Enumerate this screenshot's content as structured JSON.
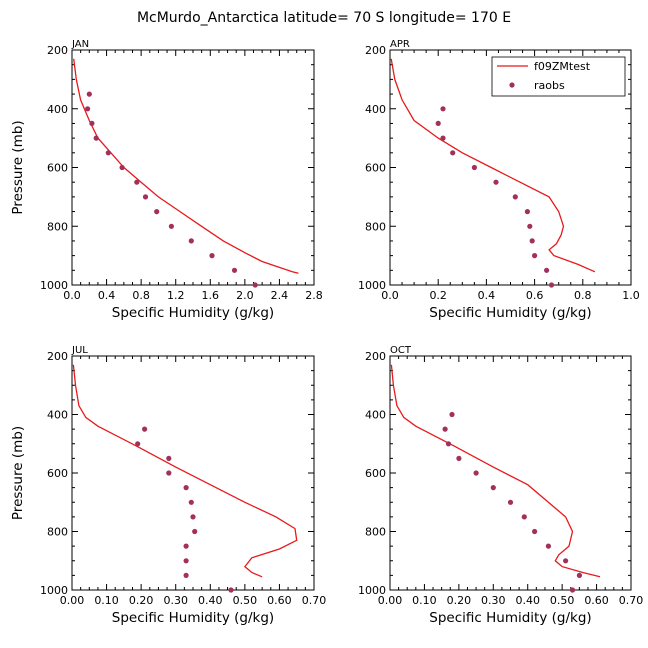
{
  "figure": {
    "title": "McMurdo_Antarctica  latitude= 70 S longitude= 170 E"
  },
  "legend": {
    "entries": [
      "f09ZMtest",
      "raobs"
    ],
    "model_color": "#e8191c",
    "obs_color": "#a3305c"
  },
  "chart_data": [
    {
      "type": "line",
      "panel": "JAN",
      "xlabel": "Specific Humidity (g/kg)",
      "ylabel": "Pressure (mb)",
      "xlim": [
        0,
        2.8
      ],
      "ylim": [
        1000,
        200
      ],
      "xticks": [
        0.0,
        0.4,
        0.8,
        1.2,
        1.6,
        2.0,
        2.4,
        2.8
      ],
      "xtick_labels": [
        "0.0",
        "0.4",
        "0.8",
        "1.2",
        "1.6",
        "2.0",
        "2.4",
        "2.8"
      ],
      "yticks": [
        200,
        400,
        600,
        800,
        1000
      ],
      "ytick_labels": [
        "200",
        "400",
        "600",
        "800",
        "1000"
      ],
      "series": [
        {
          "name": "f09ZMtest",
          "kind": "line",
          "x": [
            0.02,
            0.05,
            0.1,
            0.2,
            0.3,
            0.45,
            0.6,
            0.8,
            1.0,
            1.25,
            1.5,
            1.75,
            2.0,
            2.2,
            2.4,
            2.55,
            2.62
          ],
          "y": [
            230,
            300,
            370,
            440,
            500,
            550,
            600,
            650,
            700,
            750,
            800,
            850,
            890,
            920,
            940,
            955,
            960
          ]
        },
        {
          "name": "raobs",
          "kind": "scatter",
          "x": [
            0.2,
            0.18,
            0.23,
            0.28,
            0.42,
            0.58,
            0.75,
            0.85,
            0.98,
            1.15,
            1.38,
            1.62,
            1.88,
            2.12
          ],
          "y": [
            350,
            400,
            450,
            500,
            550,
            600,
            650,
            700,
            750,
            800,
            850,
            900,
            950,
            1000
          ]
        }
      ]
    },
    {
      "type": "line",
      "panel": "APR",
      "xlabel": "Specific Humidity (g/kg)",
      "ylabel": "",
      "xlim": [
        0,
        1.0
      ],
      "ylim": [
        1000,
        200
      ],
      "xticks": [
        0.0,
        0.2,
        0.4,
        0.6,
        0.8,
        1.0
      ],
      "xtick_labels": [
        "0.0",
        "0.2",
        "0.4",
        "0.6",
        "0.8",
        "1.0"
      ],
      "yticks": [
        200,
        400,
        600,
        800,
        1000
      ],
      "ytick_labels": [
        "200",
        "400",
        "600",
        "800",
        "1000"
      ],
      "series": [
        {
          "name": "f09ZMtest",
          "kind": "line",
          "x": [
            0.005,
            0.02,
            0.05,
            0.1,
            0.2,
            0.3,
            0.42,
            0.54,
            0.66,
            0.7,
            0.72,
            0.71,
            0.69,
            0.66,
            0.68,
            0.78,
            0.85
          ],
          "y": [
            230,
            300,
            370,
            440,
            500,
            550,
            600,
            650,
            700,
            750,
            800,
            830,
            860,
            880,
            900,
            930,
            955
          ]
        },
        {
          "name": "raobs",
          "kind": "scatter",
          "x": [
            0.22,
            0.2,
            0.22,
            0.26,
            0.35,
            0.44,
            0.52,
            0.57,
            0.58,
            0.59,
            0.6,
            0.65,
            0.67
          ],
          "y": [
            400,
            450,
            500,
            550,
            600,
            650,
            700,
            750,
            800,
            850,
            900,
            950,
            1000
          ]
        }
      ]
    },
    {
      "type": "line",
      "panel": "JUL",
      "xlabel": "Specific Humidity (g/kg)",
      "ylabel": "Pressure (mb)",
      "xlim": [
        0,
        0.7
      ],
      "ylim": [
        1000,
        200
      ],
      "xticks": [
        0.0,
        0.1,
        0.2,
        0.3,
        0.4,
        0.5,
        0.6,
        0.7
      ],
      "xtick_labels": [
        "0.00",
        "0.10",
        "0.20",
        "0.30",
        "0.40",
        "0.50",
        "0.60",
        "0.70"
      ],
      "yticks": [
        200,
        400,
        600,
        800,
        1000
      ],
      "ytick_labels": [
        "200",
        "400",
        "600",
        "800",
        "1000"
      ],
      "series": [
        {
          "name": "f09ZMtest",
          "kind": "line",
          "x": [
            0.004,
            0.01,
            0.02,
            0.04,
            0.075,
            0.19,
            0.3,
            0.4,
            0.5,
            0.59,
            0.645,
            0.65,
            0.6,
            0.52,
            0.5,
            0.52,
            0.55
          ],
          "y": [
            230,
            300,
            370,
            410,
            440,
            510,
            580,
            640,
            700,
            750,
            790,
            830,
            860,
            890,
            920,
            940,
            955
          ]
        },
        {
          "name": "raobs",
          "kind": "scatter",
          "x": [
            0.21,
            0.19,
            0.28,
            0.28,
            0.33,
            0.345,
            0.35,
            0.355,
            0.33,
            0.33,
            0.33,
            0.46
          ],
          "y": [
            450,
            500,
            550,
            600,
            650,
            700,
            750,
            800,
            850,
            900,
            950,
            1000
          ]
        }
      ]
    },
    {
      "type": "line",
      "panel": "OCT",
      "xlabel": "Specific Humidity (g/kg)",
      "ylabel": "",
      "xlim": [
        0,
        0.7
      ],
      "ylim": [
        1000,
        200
      ],
      "xticks": [
        0.0,
        0.1,
        0.2,
        0.3,
        0.4,
        0.5,
        0.6,
        0.7
      ],
      "xtick_labels": [
        "0.00",
        "0.10",
        "0.20",
        "0.30",
        "0.40",
        "0.50",
        "0.60",
        "0.70"
      ],
      "yticks": [
        200,
        400,
        600,
        800,
        1000
      ],
      "ytick_labels": [
        "200",
        "400",
        "600",
        "800",
        "1000"
      ],
      "series": [
        {
          "name": "f09ZMtest",
          "kind": "line",
          "x": [
            0.004,
            0.01,
            0.02,
            0.04,
            0.075,
            0.19,
            0.3,
            0.4,
            0.46,
            0.51,
            0.53,
            0.52,
            0.49,
            0.48,
            0.5,
            0.56,
            0.61
          ],
          "y": [
            230,
            300,
            370,
            410,
            440,
            510,
            580,
            640,
            700,
            750,
            800,
            850,
            880,
            900,
            920,
            940,
            955
          ]
        },
        {
          "name": "raobs",
          "kind": "scatter",
          "x": [
            0.18,
            0.16,
            0.17,
            0.2,
            0.25,
            0.3,
            0.35,
            0.39,
            0.42,
            0.46,
            0.51,
            0.55,
            0.53
          ],
          "y": [
            400,
            450,
            500,
            550,
            600,
            650,
            700,
            750,
            800,
            850,
            900,
            950,
            1000
          ]
        }
      ]
    }
  ]
}
